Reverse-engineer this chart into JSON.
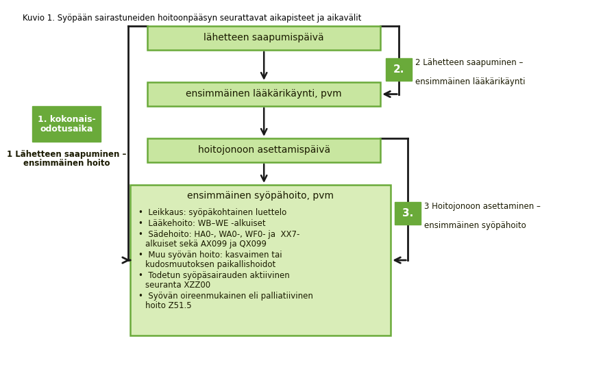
{
  "title": "Kuvio 1. Syöpään sairastuneiden hoitoonpääsyn seurattavat aikapisteet ja aikavälit",
  "title_fontsize": 8.5,
  "bg_color": "#ffffff",
  "box_color_dark": "#6aaa3a",
  "box_color_light": "#c8e6a0",
  "box_color_lighter": "#d9edb8",
  "text_color_body": "#000000",
  "text_color_box": "#1a1a00",
  "box1_text": "lähetteen saapumispäivä",
  "box2_text": "ensimmäinen lääkärikäynti, pvm",
  "box3_text": "hoitojonoon asettamispäivä",
  "box4_title": "ensimmäinen syöpähoito, pvm",
  "box4_bullets": [
    "Leikkaus: syöpäkohtainen luettelo",
    "Lääkehoito: WB–WE -alkuiset",
    "Sädehoito: HA0-, WA0-, WF0- ja  XX7-\nalkuiset sekä AX099 ja QX099",
    "Muu syövän hoito: kasvaimen tai\nkudosmuutoksen paikallishoidot",
    "Todetun syöpäsairauden aktiivinen\nseuranta XZZ00",
    "Syövän oireenmukainen eli palliatiivinen\nhoito Z51.5"
  ],
  "label1_line1": "1. kokonais-",
  "label1_line2": "odotusaika",
  "label2": "2.",
  "label3": "3.",
  "arrow1_line1": "1 Lähetteen saapuminen –",
  "arrow1_line2": "ensimmäinen hoito",
  "arrow2_line1": "2 Lähetteen saapuminen –",
  "arrow2_line2": "ensimmäinen lääkärikäynti",
  "arrow3_line1": "3 Hoitojonoon asettaminen –",
  "arrow3_line2": "ensimmäinen syöpähoito",
  "b1": [
    190,
    28,
    340,
    35
  ],
  "b2": [
    190,
    110,
    340,
    35
  ],
  "b3": [
    190,
    192,
    340,
    35
  ],
  "b4": [
    165,
    260,
    380,
    220
  ],
  "lb1": [
    22,
    145,
    100,
    52
  ],
  "lb2": [
    538,
    75,
    38,
    33
  ],
  "lb3": [
    551,
    285,
    38,
    33
  ],
  "arrow_color": "#1a1a1a",
  "bracket_color": "#1a1a1a"
}
